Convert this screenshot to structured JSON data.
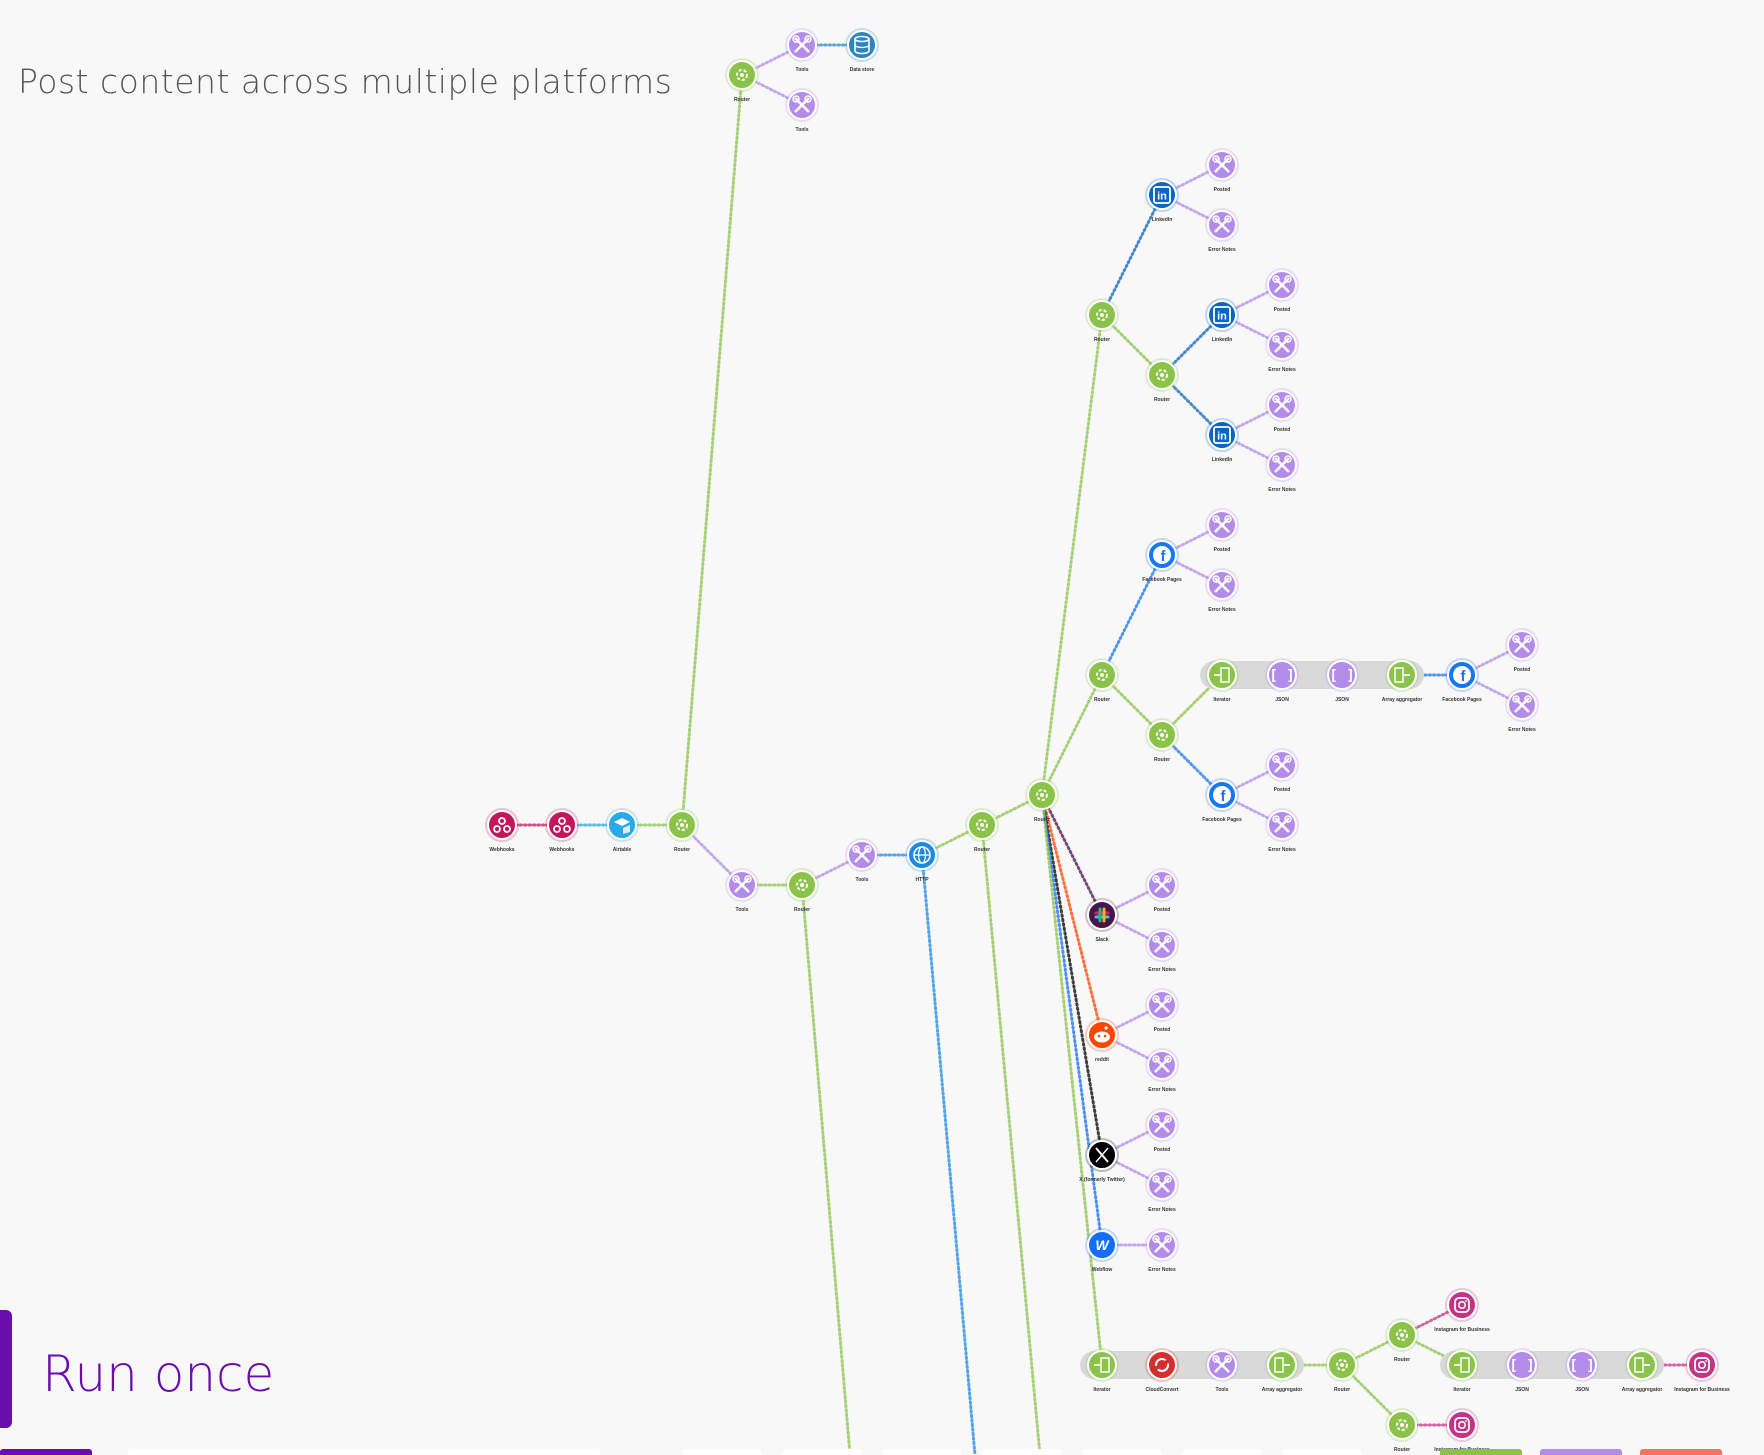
{
  "scenario": {
    "title": "Post content across multiple platforms"
  },
  "toolbar": {
    "run_once_label": "Run once"
  },
  "colors": {
    "router": "#8bc34a",
    "tools": "#b28ce8",
    "webhook": "#c2185b",
    "airtable": "#29a9e8",
    "http": "#1e88e5",
    "linkedin": "#0a66c2",
    "facebook": "#1877f2",
    "slack": "#4a154b",
    "reddit": "#ff4500",
    "x": "#000000",
    "webflow": "#146ef5",
    "instagram": "#c13584",
    "datastore": "#2e86c1",
    "cloudconvert": "#d32f2f",
    "json": "#b28ce8",
    "iterator": "#8bc34a",
    "aggregator": "#8bc34a",
    "run": "#6a0dad"
  },
  "nodes": [
    {
      "id": "n1",
      "type": "webhook",
      "label": "Webhooks",
      "icon": "webhook-icon"
    },
    {
      "id": "n2",
      "type": "webhook",
      "label": "Webhooks",
      "icon": "webhook-icon"
    },
    {
      "id": "n3",
      "type": "airtable",
      "label": "Airtable",
      "icon": "airtable-icon"
    },
    {
      "id": "n4",
      "type": "router",
      "label": "Router",
      "icon": "router-icon"
    },
    {
      "id": "n5",
      "type": "router",
      "label": "Router",
      "icon": "router-icon"
    },
    {
      "id": "n6",
      "type": "tools",
      "label": "Tools",
      "icon": "tools-icon"
    },
    {
      "id": "n7",
      "type": "datastore",
      "label": "Data store",
      "icon": "database-icon"
    },
    {
      "id": "n8",
      "type": "tools",
      "label": "Tools",
      "icon": "tools-icon"
    },
    {
      "id": "n9",
      "type": "tools",
      "label": "Tools",
      "icon": "tools-icon"
    },
    {
      "id": "n10",
      "type": "router",
      "label": "Router",
      "icon": "router-icon"
    },
    {
      "id": "n11",
      "type": "tools",
      "label": "Tools",
      "icon": "tools-icon"
    },
    {
      "id": "n12",
      "type": "http",
      "label": "HTTP",
      "icon": "globe-icon"
    },
    {
      "id": "n13",
      "type": "router",
      "label": "Router",
      "icon": "router-icon"
    },
    {
      "id": "n14",
      "type": "router",
      "label": "Router",
      "icon": "router-icon"
    },
    {
      "id": "n15",
      "type": "router",
      "label": "Router",
      "icon": "router-icon"
    },
    {
      "id": "n16",
      "type": "linkedin",
      "label": "LinkedIn",
      "icon": "linkedin-icon"
    },
    {
      "id": "n17",
      "type": "tools",
      "label": "Posted",
      "icon": "tools-icon"
    },
    {
      "id": "n18",
      "type": "tools",
      "label": "Error Notes",
      "icon": "tools-icon"
    },
    {
      "id": "n19",
      "type": "router",
      "label": "Router",
      "icon": "router-icon"
    },
    {
      "id": "n20",
      "type": "linkedin",
      "label": "LinkedIn",
      "icon": "linkedin-icon"
    },
    {
      "id": "n21",
      "type": "tools",
      "label": "Posted",
      "icon": "tools-icon"
    },
    {
      "id": "n22",
      "type": "tools",
      "label": "Error Notes",
      "icon": "tools-icon"
    },
    {
      "id": "n23",
      "type": "linkedin",
      "label": "LinkedIn",
      "icon": "linkedin-icon"
    },
    {
      "id": "n24",
      "type": "tools",
      "label": "Posted",
      "icon": "tools-icon"
    },
    {
      "id": "n25",
      "type": "tools",
      "label": "Error Notes",
      "icon": "tools-icon"
    },
    {
      "id": "n26",
      "type": "router",
      "label": "Router",
      "icon": "router-icon"
    },
    {
      "id": "n27",
      "type": "facebook",
      "label": "Facebook Pages",
      "icon": "facebook-icon"
    },
    {
      "id": "n28",
      "type": "tools",
      "label": "Posted",
      "icon": "tools-icon"
    },
    {
      "id": "n29",
      "type": "tools",
      "label": "Error Notes",
      "icon": "tools-icon"
    },
    {
      "id": "n30",
      "type": "router",
      "label": "Router",
      "icon": "router-icon"
    },
    {
      "id": "n31",
      "type": "iterator",
      "label": "Iterator",
      "icon": "iterator-icon"
    },
    {
      "id": "n32",
      "type": "json",
      "label": "JSON",
      "icon": "json-icon"
    },
    {
      "id": "n33",
      "type": "json",
      "label": "JSON",
      "icon": "json-icon"
    },
    {
      "id": "n34",
      "type": "aggregator",
      "label": "Array aggregator",
      "icon": "aggregator-icon"
    },
    {
      "id": "n35",
      "type": "facebook",
      "label": "Facebook Pages",
      "icon": "facebook-icon"
    },
    {
      "id": "n36",
      "type": "tools",
      "label": "Posted",
      "icon": "tools-icon"
    },
    {
      "id": "n37",
      "type": "tools",
      "label": "Error Notes",
      "icon": "tools-icon"
    },
    {
      "id": "n38",
      "type": "facebook",
      "label": "Facebook Pages",
      "icon": "facebook-icon"
    },
    {
      "id": "n39",
      "type": "tools",
      "label": "Posted",
      "icon": "tools-icon"
    },
    {
      "id": "n40",
      "type": "tools",
      "label": "Error Notes",
      "icon": "tools-icon"
    },
    {
      "id": "n41",
      "type": "slack",
      "label": "Slack",
      "icon": "slack-icon"
    },
    {
      "id": "n42",
      "type": "tools",
      "label": "Posted",
      "icon": "tools-icon"
    },
    {
      "id": "n43",
      "type": "tools",
      "label": "Error Notes",
      "icon": "tools-icon"
    },
    {
      "id": "n44",
      "type": "reddit",
      "label": "reddit",
      "icon": "reddit-icon"
    },
    {
      "id": "n45",
      "type": "tools",
      "label": "Posted",
      "icon": "tools-icon"
    },
    {
      "id": "n46",
      "type": "tools",
      "label": "Error Notes",
      "icon": "tools-icon"
    },
    {
      "id": "n47",
      "type": "x",
      "label": "X (formerly Twitter)",
      "icon": "x-icon"
    },
    {
      "id": "n48",
      "type": "tools",
      "label": "Posted",
      "icon": "tools-icon"
    },
    {
      "id": "n49",
      "type": "tools",
      "label": "Error Notes",
      "icon": "tools-icon"
    },
    {
      "id": "n50",
      "type": "webflow",
      "label": "Webflow",
      "icon": "webflow-icon"
    },
    {
      "id": "n51",
      "type": "tools",
      "label": "Error Notes",
      "icon": "tools-icon"
    },
    {
      "id": "n52",
      "type": "iterator",
      "label": "Iterator",
      "icon": "iterator-icon"
    },
    {
      "id": "n53",
      "type": "cloudconvert",
      "label": "CloudConvert",
      "icon": "cloudconvert-icon"
    },
    {
      "id": "n54",
      "type": "tools",
      "label": "Tools",
      "icon": "tools-icon"
    },
    {
      "id": "n55",
      "type": "aggregator",
      "label": "Array aggregator",
      "icon": "aggregator-icon"
    },
    {
      "id": "n56",
      "type": "router",
      "label": "Router",
      "icon": "router-icon"
    },
    {
      "id": "n57",
      "type": "router",
      "label": "Router",
      "icon": "router-icon"
    },
    {
      "id": "n58",
      "type": "instagram",
      "label": "Instagram for Business",
      "icon": "instagram-icon"
    },
    {
      "id": "n59",
      "type": "iterator",
      "label": "Iterator",
      "icon": "iterator-icon"
    },
    {
      "id": "n60",
      "type": "json",
      "label": "JSON",
      "icon": "json-icon"
    },
    {
      "id": "n61",
      "type": "json",
      "label": "JSON",
      "icon": "json-icon"
    },
    {
      "id": "n62",
      "type": "aggregator",
      "label": "Array aggregator",
      "icon": "aggregator-icon"
    },
    {
      "id": "n63",
      "type": "instagram",
      "label": "Instagram for Business",
      "icon": "instagram-icon"
    },
    {
      "id": "n64",
      "type": "router",
      "label": "Router",
      "icon": "router-icon"
    },
    {
      "id": "n65",
      "type": "instagram",
      "label": "Instagram for Business",
      "icon": "instagram-icon"
    }
  ]
}
